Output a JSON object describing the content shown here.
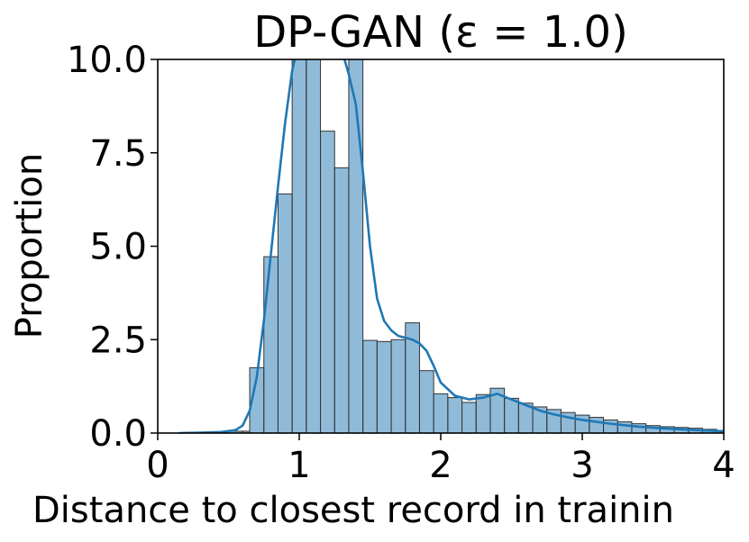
{
  "chart_data": {
    "type": "bar",
    "title": "DP-GAN (ε = 1.0)",
    "xlabel": "Distance to closest record in trainin",
    "ylabel": "Proportion",
    "xlim": [
      0,
      4
    ],
    "ylim": [
      0,
      10
    ],
    "x_ticks": [
      "0",
      "1",
      "2",
      "3",
      "4"
    ],
    "y_ticks": [
      "0.0",
      "2.5",
      "5.0",
      "7.5",
      "10.0"
    ],
    "x_tick_values": [
      0,
      1,
      2,
      3,
      4
    ],
    "y_tick_values": [
      0,
      2.5,
      5,
      7.5,
      10
    ],
    "grid": false,
    "bar_color": "#1f77b4",
    "bar_fill_opacity": 0.5,
    "bar_edge_color": "#333333",
    "line_color": "#1f77b4",
    "histogram": {
      "bin_edges": [
        0.2,
        0.3,
        0.4,
        0.5,
        0.6,
        0.65,
        0.75,
        0.85,
        0.95,
        1.05,
        1.15,
        1.25,
        1.35,
        1.45,
        1.55,
        1.65,
        1.75,
        1.85,
        1.95,
        2.05,
        2.15,
        2.25,
        2.35,
        2.45,
        2.55,
        2.65,
        2.75,
        2.85,
        2.95,
        3.05,
        3.15,
        3.25,
        3.35,
        3.45,
        3.55,
        3.65,
        3.75,
        3.85,
        3.95,
        4.05
      ],
      "values": [
        0.02,
        0.02,
        0.03,
        0.05,
        0.05,
        1.75,
        4.72,
        6.4,
        10.5,
        10.5,
        8.08,
        7.1,
        10.5,
        2.48,
        2.45,
        2.5,
        2.95,
        1.67,
        1.05,
        0.95,
        0.82,
        1.03,
        1.2,
        0.93,
        0.8,
        0.7,
        0.63,
        0.55,
        0.48,
        0.42,
        0.35,
        0.3,
        0.25,
        0.2,
        0.17,
        0.15,
        0.13,
        0.1,
        0.07
      ]
    },
    "kde": {
      "x": [
        0.15,
        0.3,
        0.45,
        0.55,
        0.6,
        0.65,
        0.7,
        0.75,
        0.8,
        0.85,
        0.9,
        0.95,
        0.98,
        1.0,
        1.05,
        1.1,
        1.15,
        1.2,
        1.25,
        1.3,
        1.32,
        1.35,
        1.4,
        1.45,
        1.5,
        1.55,
        1.6,
        1.65,
        1.7,
        1.75,
        1.8,
        1.85,
        1.9,
        1.95,
        2.0,
        2.1,
        2.2,
        2.3,
        2.4,
        2.5,
        2.6,
        2.7,
        2.8,
        2.9,
        3.0,
        3.2,
        3.4,
        3.6,
        3.8,
        4.0
      ],
      "y": [
        0.0,
        0.01,
        0.03,
        0.08,
        0.2,
        0.6,
        1.5,
        3.0,
        4.8,
        6.6,
        8.3,
        9.7,
        10.2,
        10.5,
        10.8,
        11.0,
        11.0,
        10.8,
        10.5,
        10.1,
        10.0,
        9.6,
        8.8,
        7.0,
        5.0,
        3.6,
        3.0,
        2.75,
        2.6,
        2.55,
        2.5,
        2.4,
        2.2,
        1.8,
        1.35,
        1.0,
        0.9,
        0.95,
        1.05,
        0.9,
        0.75,
        0.6,
        0.5,
        0.42,
        0.35,
        0.25,
        0.17,
        0.12,
        0.08,
        0.05
      ]
    }
  }
}
